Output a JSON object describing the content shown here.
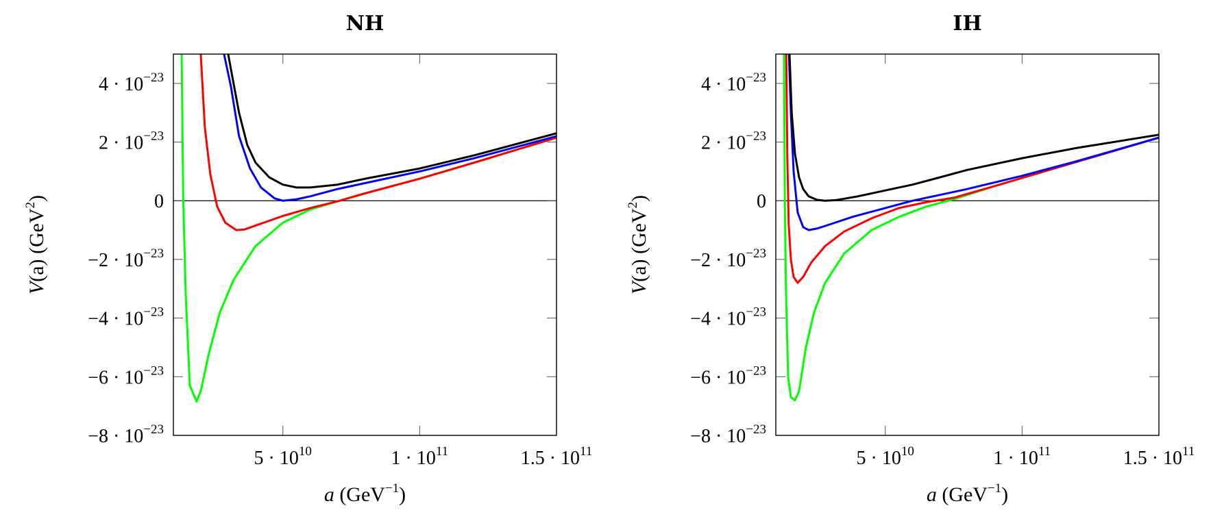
{
  "chart_data": [
    {
      "type": "line",
      "title": "NH",
      "xlabel": {
        "var": "a",
        "unit": "(GeV",
        "exp": "−1",
        "close": ")"
      },
      "ylabel": {
        "var": "V",
        "arg": "(a)",
        "unit": "(GeV",
        "exp": "2",
        "close": ")"
      },
      "xlim": [
        10000000000.0,
        150000000000.0
      ],
      "ylim": [
        -8e-23,
        5e-23
      ],
      "xticks": [
        {
          "value": 50000000000.0,
          "mant": "5 · 10",
          "exp": "10"
        },
        {
          "value": 100000000000.0,
          "mant": "1 · 10",
          "exp": "11"
        },
        {
          "value": 150000000000.0,
          "mant": "1.5 · 10",
          "exp": "11"
        }
      ],
      "yticks": [
        {
          "value": 4e-23,
          "mant": "4 · 10",
          "exp": "−23"
        },
        {
          "value": 2e-23,
          "mant": "2 · 10",
          "exp": "−23"
        },
        {
          "value": 0,
          "mant": "0",
          "exp": ""
        },
        {
          "value": -2e-23,
          "mant": "−2 · 10",
          "exp": "−23"
        },
        {
          "value": -4e-23,
          "mant": "−4 · 10",
          "exp": "−23"
        },
        {
          "value": -6e-23,
          "mant": "−6 · 10",
          "exp": "−23"
        },
        {
          "value": -8e-23,
          "mant": "−8 · 10",
          "exp": "−23"
        }
      ],
      "zero_line": true,
      "series": [
        {
          "name": "green",
          "color": "#00ff00",
          "x": [
            13000000000.0,
            13600000000.0,
            14500000000.0,
            16000000000.0,
            18500000000.0,
            20000000000.0,
            23000000000.0,
            27000000000.0,
            32000000000.0,
            40000000000.0,
            50000000000.0,
            60000000000.0,
            70000000000.0,
            80000000000.0,
            100000000000.0,
            120000000000.0,
            150000000000.0
          ],
          "y": [
            5e-23,
            0.0,
            -3.2e-23,
            -6.3e-23,
            -6.85e-23,
            -6.5e-23,
            -5.2e-23,
            -3.8e-23,
            -2.7e-23,
            -1.55e-23,
            -7.5e-24,
            -3e-24,
            -2e-25,
            2.5e-24,
            7.5e-24,
            1.3e-23,
            2.15e-23
          ]
        },
        {
          "name": "red",
          "color": "#ff0000",
          "x": [
            20000000000.0,
            21500000000.0,
            23500000000.0,
            26000000000.0,
            29000000000.0,
            33000000000.0,
            36000000000.0,
            40000000000.0,
            50000000000.0,
            60000000000.0,
            70000000000.0,
            80000000000.0,
            100000000000.0,
            120000000000.0,
            150000000000.0
          ],
          "y": [
            5e-23,
            2.5e-23,
            9e-24,
            -2e-24,
            -7.5e-24,
            -1e-23,
            -9.8e-24,
            -8.5e-24,
            -5.2e-24,
            -2.5e-24,
            -2e-25,
            2.5e-24,
            7.5e-24,
            1.3e-23,
            2.15e-23
          ]
        },
        {
          "name": "blue",
          "color": "#0000ff",
          "x": [
            28500000000.0,
            31000000000.0,
            34000000000.0,
            38000000000.0,
            42000000000.0,
            47000000000.0,
            50000000000.0,
            55000000000.0,
            60000000000.0,
            70000000000.0,
            80000000000.0,
            100000000000.0,
            120000000000.0,
            150000000000.0
          ],
          "y": [
            5e-23,
            3.9e-23,
            2.2e-23,
            1.1e-23,
            4.5e-24,
            8e-25,
            0.0,
            5e-25,
            1.5e-24,
            4e-24,
            6e-24,
            1e-23,
            1.45e-23,
            2.2e-23
          ]
        },
        {
          "name": "black",
          "color": "#000000",
          "x": [
            30000000000.0,
            32000000000.0,
            34000000000.0,
            37000000000.0,
            40000000000.0,
            45000000000.0,
            50000000000.0,
            55000000000.0,
            60000000000.0,
            70000000000.0,
            80000000000.0,
            100000000000.0,
            120000000000.0,
            150000000000.0
          ],
          "y": [
            5e-23,
            4e-23,
            3e-23,
            1.9e-23,
            1.3e-23,
            8e-24,
            5.5e-24,
            4.5e-24,
            4.5e-24,
            5.5e-24,
            7.5e-24,
            1.1e-23,
            1.55e-23,
            2.3e-23
          ]
        }
      ]
    },
    {
      "type": "line",
      "title": "IH",
      "xlabel": {
        "var": "a",
        "unit": "(GeV",
        "exp": "−1",
        "close": ")"
      },
      "ylabel": {
        "var": "V",
        "arg": "(a)",
        "unit": "(GeV",
        "exp": "2",
        "close": ")"
      },
      "xlim": [
        10000000000.0,
        150000000000.0
      ],
      "ylim": [
        -8e-23,
        5e-23
      ],
      "xticks": [
        {
          "value": 50000000000.0,
          "mant": "5 · 10",
          "exp": "10"
        },
        {
          "value": 100000000000.0,
          "mant": "1 · 10",
          "exp": "11"
        },
        {
          "value": 150000000000.0,
          "mant": "1.5 · 10",
          "exp": "11"
        }
      ],
      "yticks": [
        {
          "value": 4e-23,
          "mant": "4 · 10",
          "exp": "−23"
        },
        {
          "value": 2e-23,
          "mant": "2 · 10",
          "exp": "−23"
        },
        {
          "value": 0,
          "mant": "0",
          "exp": ""
        },
        {
          "value": -2e-23,
          "mant": "−2 · 10",
          "exp": "−23"
        },
        {
          "value": -4e-23,
          "mant": "−4 · 10",
          "exp": "−23"
        },
        {
          "value": -6e-23,
          "mant": "−6 · 10",
          "exp": "−23"
        },
        {
          "value": -8e-23,
          "mant": "−8 · 10",
          "exp": "−23"
        }
      ],
      "zero_line": true,
      "series": [
        {
          "name": "green",
          "color": "#00ff00",
          "x": [
            13000000000.0,
            13300000000.0,
            13700000000.0,
            14500000000.0,
            15500000000.0,
            17000000000.0,
            18500000000.0,
            21000000000.0,
            24000000000.0,
            28000000000.0,
            35000000000.0,
            45000000000.0,
            55000000000.0,
            65000000000.0,
            75000000000.0,
            90000000000.0,
            110000000000.0,
            130000000000.0,
            150000000000.0
          ],
          "y": [
            5e-23,
            0.0,
            -3e-23,
            -6e-23,
            -6.7e-23,
            -6.8e-23,
            -6.5e-23,
            -5e-23,
            -3.8e-23,
            -2.8e-23,
            -1.8e-23,
            -1e-23,
            -5.5e-24,
            -2e-24,
            5e-25,
            5e-24,
            1.05e-23,
            1.6e-23,
            2.15e-23
          ]
        },
        {
          "name": "red",
          "color": "#ff0000",
          "x": [
            13800000000.0,
            14200000000.0,
            14700000000.0,
            15500000000.0,
            16500000000.0,
            18000000000.0,
            20000000000.0,
            23000000000.0,
            28000000000.0,
            35000000000.0,
            45000000000.0,
            55000000000.0,
            65000000000.0,
            75000000000.0,
            90000000000.0,
            110000000000.0,
            130000000000.0,
            150000000000.0
          ],
          "y": [
            5e-23,
            1.5e-23,
            -8e-24,
            -2e-23,
            -2.6e-23,
            -2.8e-23,
            -2.6e-23,
            -2.1e-23,
            -1.55e-23,
            -1.05e-23,
            -6e-24,
            -2.5e-24,
            -5e-25,
            1e-24,
            5e-24,
            1.05e-23,
            1.6e-23,
            2.15e-23
          ]
        },
        {
          "name": "blue",
          "color": "#0000ff",
          "x": [
            14800000000.0,
            15500000000.0,
            16500000000.0,
            18000000000.0,
            20000000000.0,
            22000000000.0,
            25000000000.0,
            30000000000.0,
            38000000000.0,
            50000000000.0,
            60000000000.0,
            70000000000.0,
            80000000000.0,
            100000000000.0,
            120000000000.0,
            150000000000.0
          ],
          "y": [
            5e-23,
            3e-23,
            1e-23,
            -4e-24,
            -9e-24,
            -1e-23,
            -9.5e-24,
            -8e-24,
            -5.5e-24,
            -2.5e-24,
            0.0,
            2e-24,
            4e-24,
            8.5e-24,
            1.35e-23,
            2.15e-23
          ]
        },
        {
          "name": "black",
          "color": "#000000",
          "x": [
            15000000000.0,
            15800000000.0,
            17000000000.0,
            18500000000.0,
            20000000000.0,
            22000000000.0,
            25000000000.0,
            28000000000.0,
            32000000000.0,
            40000000000.0,
            50000000000.0,
            60000000000.0,
            70000000000.0,
            80000000000.0,
            100000000000.0,
            120000000000.0,
            150000000000.0
          ],
          "y": [
            5e-23,
            3e-23,
            1.6e-23,
            8e-24,
            4e-24,
            1.5e-24,
            3e-25,
            0.0,
            2e-25,
            1.5e-24,
            3.5e-24,
            5.5e-24,
            8e-24,
            1.05e-23,
            1.45e-23,
            1.8e-23,
            2.25e-23
          ]
        }
      ]
    }
  ]
}
